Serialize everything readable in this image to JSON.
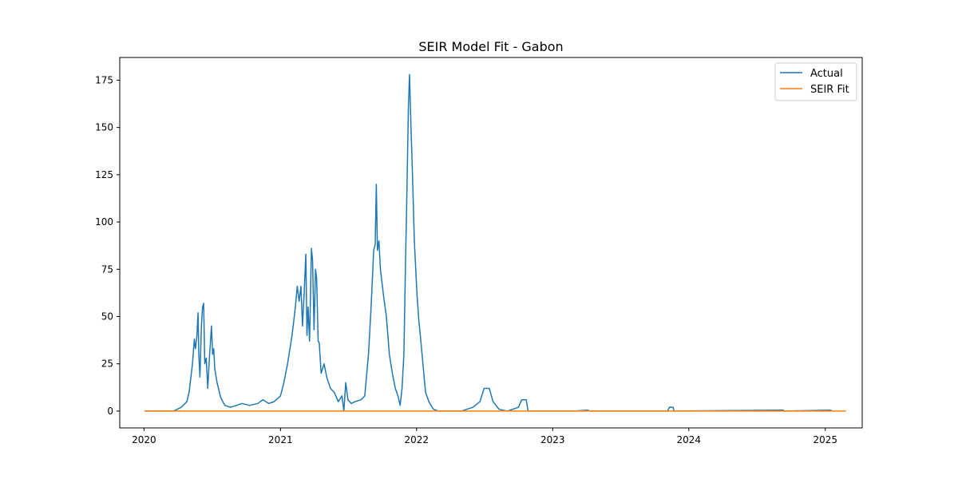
{
  "chart_data": {
    "type": "line",
    "title": "SEIR Model Fit - Gabon",
    "xlabel": "",
    "ylabel": "",
    "xlim": [
      "2019-10-28",
      "2025-04-10"
    ],
    "ylim": [
      -8.9,
      187.0
    ],
    "x_ticks": [
      {
        "date": "2020-01-01",
        "label": "2020"
      },
      {
        "date": "2021-01-01",
        "label": "2021"
      },
      {
        "date": "2022-01-01",
        "label": "2022"
      },
      {
        "date": "2023-01-01",
        "label": "2023"
      },
      {
        "date": "2024-01-01",
        "label": "2024"
      },
      {
        "date": "2025-01-01",
        "label": "2025"
      }
    ],
    "y_ticks": [
      0,
      25,
      50,
      75,
      100,
      125,
      150,
      175
    ],
    "grid": false,
    "legend": "top-right",
    "series": [
      {
        "name": "Actual",
        "color": "#1f77b4",
        "points": [
          [
            "2020-01-03",
            0
          ],
          [
            "2020-03-20",
            0
          ],
          [
            "2020-04-10",
            2
          ],
          [
            "2020-04-25",
            5
          ],
          [
            "2020-05-01",
            10
          ],
          [
            "2020-05-10",
            25
          ],
          [
            "2020-05-15",
            38
          ],
          [
            "2020-05-18",
            33
          ],
          [
            "2020-05-22",
            40
          ],
          [
            "2020-05-25",
            52
          ],
          [
            "2020-05-27",
            30
          ],
          [
            "2020-05-30",
            18
          ],
          [
            "2020-06-03",
            45
          ],
          [
            "2020-06-06",
            55
          ],
          [
            "2020-06-09",
            57
          ],
          [
            "2020-06-12",
            25
          ],
          [
            "2020-06-16",
            28
          ],
          [
            "2020-06-20",
            12
          ],
          [
            "2020-06-25",
            30
          ],
          [
            "2020-06-30",
            45
          ],
          [
            "2020-07-03",
            30
          ],
          [
            "2020-07-06",
            33
          ],
          [
            "2020-07-09",
            22
          ],
          [
            "2020-07-15",
            15
          ],
          [
            "2020-07-25",
            7
          ],
          [
            "2020-08-05",
            3
          ],
          [
            "2020-08-20",
            2
          ],
          [
            "2020-09-05",
            3
          ],
          [
            "2020-09-20",
            4
          ],
          [
            "2020-10-10",
            3
          ],
          [
            "2020-11-01",
            4
          ],
          [
            "2020-11-15",
            6
          ],
          [
            "2020-12-01",
            4
          ],
          [
            "2020-12-15",
            5
          ],
          [
            "2021-01-01",
            8
          ],
          [
            "2021-01-10",
            15
          ],
          [
            "2021-01-20",
            25
          ],
          [
            "2021-02-01",
            40
          ],
          [
            "2021-02-10",
            55
          ],
          [
            "2021-02-15",
            66
          ],
          [
            "2021-02-20",
            58
          ],
          [
            "2021-02-25",
            66
          ],
          [
            "2021-03-01",
            45
          ],
          [
            "2021-03-05",
            60
          ],
          [
            "2021-03-10",
            83
          ],
          [
            "2021-03-13",
            40
          ],
          [
            "2021-03-16",
            55
          ],
          [
            "2021-03-20",
            37
          ],
          [
            "2021-03-25",
            86
          ],
          [
            "2021-03-28",
            80
          ],
          [
            "2021-04-01",
            43
          ],
          [
            "2021-04-05",
            75
          ],
          [
            "2021-04-08",
            70
          ],
          [
            "2021-04-12",
            37
          ],
          [
            "2021-04-15",
            36
          ],
          [
            "2021-04-20",
            20
          ],
          [
            "2021-04-28",
            25
          ],
          [
            "2021-05-05",
            18
          ],
          [
            "2021-05-15",
            12
          ],
          [
            "2021-05-25",
            10
          ],
          [
            "2021-06-05",
            5
          ],
          [
            "2021-06-15",
            8
          ],
          [
            "2021-06-20",
            0
          ],
          [
            "2021-06-25",
            15
          ],
          [
            "2021-07-01",
            6
          ],
          [
            "2021-07-10",
            4
          ],
          [
            "2021-07-20",
            5
          ],
          [
            "2021-08-05",
            6
          ],
          [
            "2021-08-15",
            8
          ],
          [
            "2021-08-25",
            30
          ],
          [
            "2021-09-01",
            55
          ],
          [
            "2021-09-08",
            85
          ],
          [
            "2021-09-12",
            88
          ],
          [
            "2021-09-15",
            120
          ],
          [
            "2021-09-18",
            85
          ],
          [
            "2021-09-22",
            90
          ],
          [
            "2021-09-26",
            75
          ],
          [
            "2021-10-05",
            60
          ],
          [
            "2021-10-12",
            50
          ],
          [
            "2021-10-20",
            30
          ],
          [
            "2021-10-28",
            20
          ],
          [
            "2021-11-05",
            12
          ],
          [
            "2021-11-12",
            8
          ],
          [
            "2021-11-18",
            3
          ],
          [
            "2021-11-23",
            12
          ],
          [
            "2021-11-28",
            30
          ],
          [
            "2021-12-02",
            75
          ],
          [
            "2021-12-06",
            115
          ],
          [
            "2021-12-10",
            160
          ],
          [
            "2021-12-13",
            178
          ],
          [
            "2021-12-17",
            150
          ],
          [
            "2021-12-21",
            125
          ],
          [
            "2021-12-26",
            90
          ],
          [
            "2022-01-02",
            62
          ],
          [
            "2022-01-07",
            48
          ],
          [
            "2022-01-12",
            38
          ],
          [
            "2022-01-18",
            25
          ],
          [
            "2022-01-25",
            10
          ],
          [
            "2022-02-03",
            5
          ],
          [
            "2022-02-15",
            1
          ],
          [
            "2022-03-01",
            0
          ],
          [
            "2022-04-01",
            0
          ],
          [
            "2022-05-01",
            0
          ],
          [
            "2022-06-01",
            2
          ],
          [
            "2022-06-20",
            5
          ],
          [
            "2022-07-01",
            12
          ],
          [
            "2022-07-15",
            12
          ],
          [
            "2022-07-25",
            5
          ],
          [
            "2022-08-10",
            1
          ],
          [
            "2022-09-01",
            0
          ],
          [
            "2022-10-01",
            2
          ],
          [
            "2022-10-10",
            6
          ],
          [
            "2022-10-22",
            6
          ],
          [
            "2022-10-27",
            0
          ],
          [
            "2022-12-01",
            0
          ],
          [
            "2023-03-01",
            0
          ],
          [
            "2023-04-05",
            0.5
          ],
          [
            "2023-04-10",
            0
          ],
          [
            "2023-11-05",
            0
          ],
          [
            "2023-11-10",
            2
          ],
          [
            "2023-11-20",
            2
          ],
          [
            "2023-11-22",
            0
          ],
          [
            "2024-09-10",
            0.5
          ],
          [
            "2024-09-15",
            0
          ],
          [
            "2025-01-15",
            0.5
          ],
          [
            "2025-01-20",
            0
          ]
        ]
      },
      {
        "name": "SEIR Fit",
        "color": "#ff7f0e",
        "points": [
          [
            "2020-01-03",
            0
          ],
          [
            "2025-02-25",
            0
          ]
        ]
      }
    ]
  }
}
